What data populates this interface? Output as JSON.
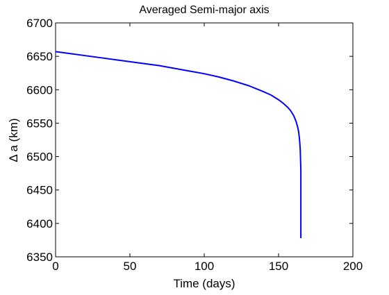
{
  "chart_data": {
    "type": "line",
    "title": "Averaged Semi-major axis",
    "xlabel": "Time (days)",
    "ylabel": "Δ a (km)",
    "xlim": [
      0,
      200
    ],
    "ylim": [
      6350,
      6700
    ],
    "xticks": [
      0,
      50,
      100,
      150,
      200
    ],
    "yticks": [
      6350,
      6400,
      6450,
      6500,
      6550,
      6600,
      6650,
      6700
    ],
    "grid": false,
    "legend": "none",
    "series": [
      {
        "name": "Semi-major axis",
        "color": "#0000ff",
        "x": [
          0,
          10,
          20,
          30,
          40,
          50,
          60,
          70,
          80,
          90,
          100,
          110,
          120,
          130,
          140,
          145,
          150,
          153,
          156,
          158,
          160,
          161,
          162,
          163,
          163.5,
          164,
          164.3,
          164.6,
          164.8,
          165,
          165,
          165
        ],
        "y": [
          6657,
          6654,
          6651,
          6648,
          6645,
          6642,
          6639,
          6636,
          6632,
          6628,
          6624,
          6619,
          6613,
          6606,
          6597,
          6592,
          6585,
          6580,
          6574,
          6569,
          6562,
          6557,
          6551,
          6543,
          6537,
          6528,
          6520,
          6510,
          6495,
          6480,
          6420,
          6378
        ]
      }
    ]
  },
  "colors": {
    "line": "#0000ff",
    "axes": "#000000",
    "background": "#ffffff"
  }
}
